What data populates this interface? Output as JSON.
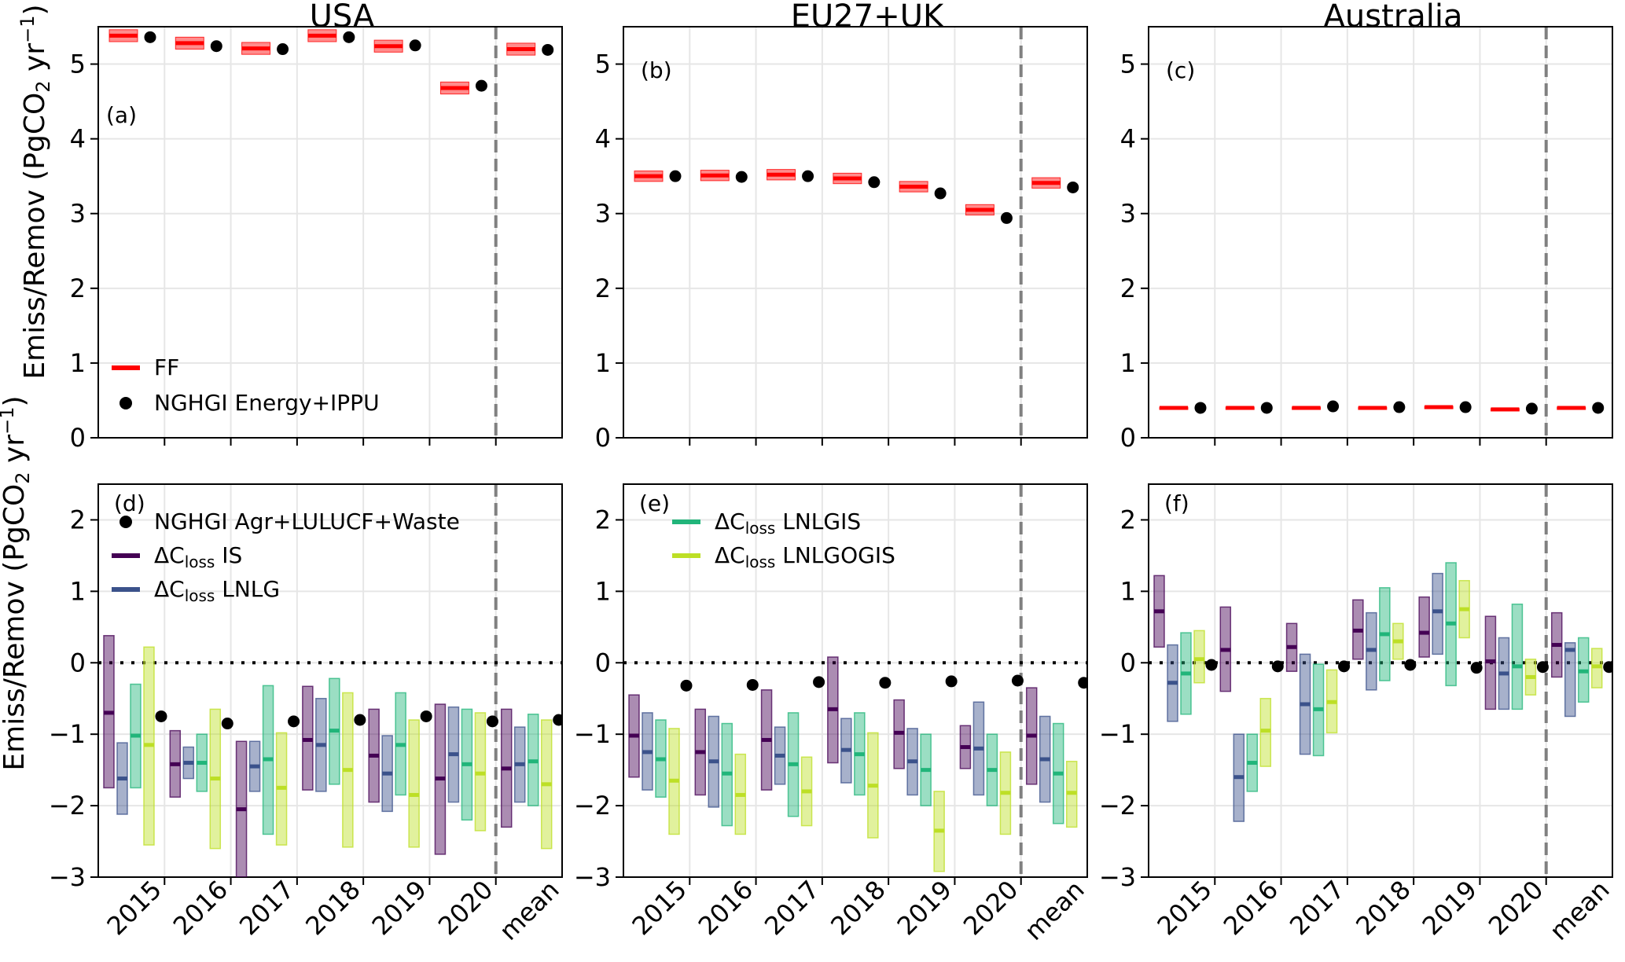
{
  "chart_data": {
    "type": "multi-panel box and point chart",
    "panel_titles": [
      "USA",
      "EU27+UK",
      "Australia"
    ],
    "ylabel_top": "Emiss/Remov (PgCO2 yr−1)",
    "ylabel_bottom": "Emiss/Remov (PgCO2 yr−1)",
    "x_categories": [
      "2015",
      "2016",
      "2017",
      "2018",
      "2019",
      "2020",
      "mean"
    ],
    "ylim_top": [
      0,
      5.5
    ],
    "ylim_bottom": [
      -3,
      2.5
    ],
    "yticks_top": [
      "0",
      "1",
      "2",
      "3",
      "4",
      "5"
    ],
    "yticks_bottom": [
      "−3",
      "−2",
      "−1",
      "0",
      "1",
      "2"
    ],
    "grid": true,
    "colors": {
      "FF": "#ff0000",
      "NGHGI": "#000000",
      "IS": "#440154",
      "LNLG": "#3b528b",
      "LNLGIS": "#21b57a",
      "LNLGOGIS": "#bddf26",
      "divider": "#808080"
    },
    "top_legend": [
      {
        "key": "FF",
        "label": "FF",
        "marker": "line"
      },
      {
        "key": "NGHGI",
        "label": "NGHGI Energy+IPPU",
        "marker": "dot"
      }
    ],
    "bottom_legend_left": [
      {
        "key": "NGHGI",
        "label": "NGHGI Agr+LULUCF+Waste",
        "marker": "dot"
      },
      {
        "key": "IS",
        "prefix": "ΔC",
        "sub": "loss",
        "label": " IS",
        "marker": "line"
      },
      {
        "key": "LNLG",
        "prefix": "ΔC",
        "sub": "loss",
        "label": " LNLG",
        "marker": "line"
      }
    ],
    "bottom_legend_mid": [
      {
        "key": "LNLGIS",
        "prefix": "ΔC",
        "sub": "loss",
        "label": " LNLGIS",
        "marker": "line"
      },
      {
        "key": "LNLGOGIS",
        "prefix": "ΔC",
        "sub": "loss",
        "label": " LNLGOGIS",
        "marker": "line"
      }
    ],
    "panels_top": [
      {
        "letter": "(a)",
        "FF": [
          [
            5.38,
            5.3,
            5.46
          ],
          [
            5.28,
            5.2,
            5.36
          ],
          [
            5.21,
            5.13,
            5.29
          ],
          [
            5.38,
            5.3,
            5.46
          ],
          [
            5.24,
            5.16,
            5.32
          ],
          [
            4.68,
            4.6,
            4.76
          ],
          [
            5.2,
            5.12,
            5.28
          ]
        ],
        "NGHGI": [
          5.36,
          5.24,
          5.2,
          5.36,
          5.25,
          4.71,
          5.19
        ]
      },
      {
        "letter": "(b)",
        "FF": [
          [
            3.5,
            3.43,
            3.57
          ],
          [
            3.51,
            3.44,
            3.58
          ],
          [
            3.52,
            3.45,
            3.59
          ],
          [
            3.47,
            3.4,
            3.54
          ],
          [
            3.36,
            3.29,
            3.43
          ],
          [
            3.05,
            2.98,
            3.12
          ],
          [
            3.41,
            3.34,
            3.48
          ]
        ],
        "NGHGI": [
          3.5,
          3.49,
          3.5,
          3.42,
          3.27,
          2.94,
          3.35
        ]
      },
      {
        "letter": "(c)",
        "FF": [
          [
            0.4,
            0.39,
            0.41
          ],
          [
            0.4,
            0.39,
            0.41
          ],
          [
            0.4,
            0.39,
            0.41
          ],
          [
            0.4,
            0.39,
            0.41
          ],
          [
            0.41,
            0.4,
            0.42
          ],
          [
            0.38,
            0.37,
            0.39
          ],
          [
            0.4,
            0.39,
            0.41
          ]
        ],
        "NGHGI": [
          0.4,
          0.4,
          0.42,
          0.41,
          0.41,
          0.39,
          0.4
        ]
      }
    ],
    "panels_bottom": [
      {
        "letter": "(d)",
        "NGHGI": [
          -0.75,
          -0.85,
          -0.82,
          -0.8,
          -0.75,
          -0.82,
          -0.8
        ],
        "series": {
          "IS": [
            [
              -0.7,
              -1.75,
              0.38
            ],
            [
              -1.42,
              -1.88,
              -0.95
            ],
            [
              -2.05,
              -3.0,
              -1.1
            ],
            [
              -1.08,
              -1.78,
              -0.33
            ],
            [
              -1.3,
              -1.95,
              -0.65
            ],
            [
              -1.62,
              -2.68,
              -0.58
            ],
            [
              -1.48,
              -2.3,
              -0.65
            ]
          ],
          "LNLG": [
            [
              -1.62,
              -2.12,
              -1.12
            ],
            [
              -1.4,
              -1.62,
              -1.18
            ],
            [
              -1.45,
              -1.8,
              -1.1
            ],
            [
              -1.15,
              -1.8,
              -0.5
            ],
            [
              -1.55,
              -2.08,
              -1.02
            ],
            [
              -1.28,
              -1.95,
              -0.62
            ],
            [
              -1.42,
              -1.95,
              -0.9
            ]
          ],
          "LNLGIS": [
            [
              -1.02,
              -1.75,
              -0.3
            ],
            [
              -1.4,
              -1.8,
              -1.0
            ],
            [
              -1.35,
              -2.4,
              -0.32
            ],
            [
              -0.95,
              -1.7,
              -0.22
            ],
            [
              -1.15,
              -1.85,
              -0.42
            ],
            [
              -1.42,
              -2.2,
              -0.65
            ],
            [
              -1.38,
              -2.0,
              -0.72
            ]
          ],
          "LNLGOGIS": [
            [
              -1.15,
              -2.55,
              0.22
            ],
            [
              -1.62,
              -2.6,
              -0.65
            ],
            [
              -1.75,
              -2.55,
              -0.98
            ],
            [
              -1.5,
              -2.58,
              -0.42
            ],
            [
              -1.85,
              -2.58,
              -0.8
            ],
            [
              -1.55,
              -2.35,
              -0.7
            ],
            [
              -1.7,
              -2.6,
              -0.8
            ]
          ]
        }
      },
      {
        "letter": "(e)",
        "NGHGI": [
          -0.32,
          -0.31,
          -0.27,
          -0.28,
          -0.26,
          -0.25,
          -0.28
        ],
        "series": {
          "IS": [
            [
              -1.02,
              -1.6,
              -0.45
            ],
            [
              -1.25,
              -1.85,
              -0.65
            ],
            [
              -1.08,
              -1.78,
              -0.38
            ],
            [
              -0.65,
              -1.4,
              0.08
            ],
            [
              -0.98,
              -1.48,
              -0.52
            ],
            [
              -1.18,
              -1.48,
              -0.88
            ],
            [
              -1.02,
              -1.7,
              -0.35
            ]
          ],
          "LNLG": [
            [
              -1.25,
              -1.78,
              -0.7
            ],
            [
              -1.38,
              -2.02,
              -0.75
            ],
            [
              -1.3,
              -1.7,
              -0.9
            ],
            [
              -1.22,
              -1.68,
              -0.78
            ],
            [
              -1.38,
              -1.85,
              -0.92
            ],
            [
              -1.2,
              -1.85,
              -0.55
            ],
            [
              -1.35,
              -1.95,
              -0.75
            ]
          ],
          "LNLGIS": [
            [
              -1.35,
              -1.88,
              -0.8
            ],
            [
              -1.55,
              -2.28,
              -0.85
            ],
            [
              -1.42,
              -2.15,
              -0.7
            ],
            [
              -1.28,
              -1.85,
              -0.7
            ],
            [
              -1.5,
              -2.0,
              -1.0
            ],
            [
              -1.5,
              -2.0,
              -1.0
            ],
            [
              -1.55,
              -2.25,
              -0.85
            ]
          ],
          "LNLGOGIS": [
            [
              -1.65,
              -2.4,
              -0.92
            ],
            [
              -1.85,
              -2.4,
              -1.28
            ],
            [
              -1.8,
              -2.28,
              -1.32
            ],
            [
              -1.72,
              -2.45,
              -0.98
            ],
            [
              -2.35,
              -2.92,
              -1.8
            ],
            [
              -1.82,
              -2.4,
              -1.25
            ],
            [
              -1.82,
              -2.3,
              -1.38
            ]
          ]
        }
      },
      {
        "letter": "(f)",
        "NGHGI": [
          -0.03,
          -0.05,
          -0.05,
          -0.03,
          -0.07,
          -0.06,
          -0.06
        ],
        "series": {
          "IS": [
            [
              0.72,
              0.22,
              1.22
            ],
            [
              0.18,
              -0.4,
              0.78
            ],
            [
              0.22,
              -0.12,
              0.55
            ],
            [
              0.45,
              0.05,
              0.88
            ],
            [
              0.42,
              0.08,
              0.92
            ],
            [
              0.02,
              -0.65,
              0.65
            ],
            [
              0.25,
              -0.2,
              0.7
            ]
          ],
          "LNLG": [
            [
              -0.28,
              -0.82,
              0.25
            ],
            [
              -1.6,
              -2.22,
              -1.0
            ],
            [
              -0.58,
              -1.28,
              0.12
            ],
            [
              0.18,
              -0.38,
              0.7
            ],
            [
              0.72,
              0.12,
              1.25
            ],
            [
              -0.15,
              -0.65,
              0.35
            ],
            [
              0.18,
              -0.75,
              0.28
            ]
          ],
          "LNLGIS": [
            [
              -0.15,
              -0.72,
              0.42
            ],
            [
              -1.4,
              -1.8,
              -1.0
            ],
            [
              -0.65,
              -1.3,
              -0.02
            ],
            [
              0.4,
              -0.25,
              1.05
            ],
            [
              0.55,
              -0.32,
              1.4
            ],
            [
              -0.05,
              -0.65,
              0.82
            ],
            [
              -0.12,
              -0.55,
              0.35
            ]
          ],
          "LNLGOGIS": [
            [
              0.05,
              -0.28,
              0.45
            ],
            [
              -0.95,
              -1.45,
              -0.5
            ],
            [
              -0.55,
              -0.98,
              -0.1
            ],
            [
              0.3,
              0.05,
              0.55
            ],
            [
              0.75,
              0.35,
              1.15
            ],
            [
              -0.2,
              -0.45,
              0.05
            ],
            [
              -0.05,
              -0.35,
              0.2
            ]
          ]
        }
      }
    ]
  }
}
